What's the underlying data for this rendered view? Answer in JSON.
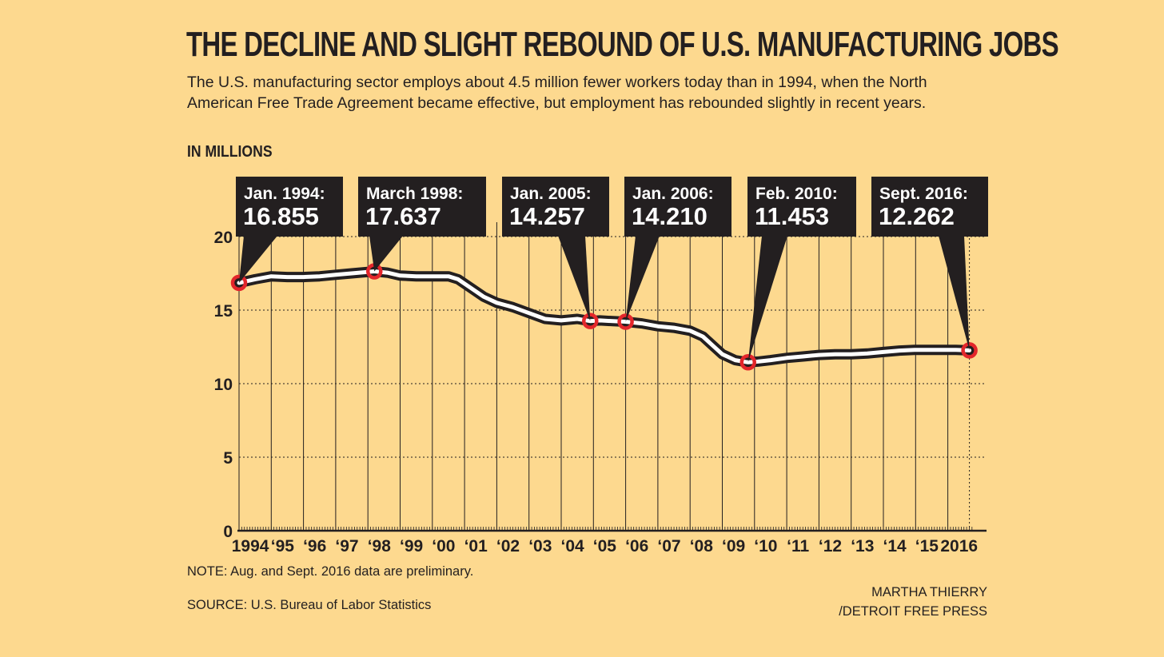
{
  "header": {
    "title": "THE DECLINE AND SLIGHT REBOUND OF U.S. MANUFACTURING JOBS",
    "subtitle": "The U.S. manufacturing sector employs about 4.5 million fewer workers today than in 1994, when the North American Free Trade Agreement became effective, but employment has rebounded slightly in recent years.",
    "units": "IN MILLIONS"
  },
  "footer": {
    "note": "NOTE: Aug. and Sept. 2016 data are preliminary.",
    "source": "SOURCE: U.S. Bureau of Labor Statistics",
    "credit_line1": "MARTHA THIERRY",
    "credit_line2": "/DETROIT FREE PRESS"
  },
  "colors": {
    "background": "#fdd98f",
    "line": "#231f20",
    "marker": "#e3262b",
    "callout": "#231f20",
    "callout_text": "#ffffff"
  },
  "chart_data": {
    "type": "line",
    "ylim": [
      0,
      20
    ],
    "yticks": [
      0,
      5,
      10,
      15,
      20
    ],
    "xlim": [
      1994.0,
      2016.75
    ],
    "xtick_labels": [
      {
        "year": 1994,
        "label": "1994"
      },
      {
        "year": 1995,
        "label": "‘95"
      },
      {
        "year": 1996,
        "label": "‘96"
      },
      {
        "year": 1997,
        "label": "‘97"
      },
      {
        "year": 1998,
        "label": "‘98"
      },
      {
        "year": 1999,
        "label": "‘99"
      },
      {
        "year": 2000,
        "label": "‘00"
      },
      {
        "year": 2001,
        "label": "‘01"
      },
      {
        "year": 2002,
        "label": "‘02"
      },
      {
        "year": 2003,
        "label": "‘03"
      },
      {
        "year": 2004,
        "label": "‘04"
      },
      {
        "year": 2005,
        "label": "‘05"
      },
      {
        "year": 2006,
        "label": "‘06"
      },
      {
        "year": 2007,
        "label": "‘07"
      },
      {
        "year": 2008,
        "label": "‘08"
      },
      {
        "year": 2009,
        "label": "‘09"
      },
      {
        "year": 2010,
        "label": "‘10"
      },
      {
        "year": 2011,
        "label": "‘11"
      },
      {
        "year": 2012,
        "label": "‘12"
      },
      {
        "year": 2013,
        "label": "‘13"
      },
      {
        "year": 2014,
        "label": "‘14"
      },
      {
        "year": 2015,
        "label": "‘15"
      },
      {
        "year": 2016,
        "label": "2016"
      }
    ],
    "series": [
      {
        "x": [
          1994.0,
          1994.5,
          1995.0,
          1995.5,
          1996.0,
          1996.5,
          1997.0,
          1997.5,
          1998.2,
          1998.6,
          1999.0,
          1999.5,
          2000.0,
          2000.5,
          2000.8,
          2001.2,
          2001.6,
          2002.0,
          2002.5,
          2003.0,
          2003.5,
          2004.0,
          2004.5,
          2004.9,
          2005.2,
          2005.6,
          2006.0,
          2006.5,
          2007.0,
          2007.5,
          2008.0,
          2008.4,
          2008.7,
          2009.0,
          2009.4,
          2009.8,
          2010.1,
          2010.5,
          2011.0,
          2011.5,
          2012.0,
          2012.5,
          2013.0,
          2013.5,
          2014.0,
          2014.5,
          2015.0,
          2015.5,
          2016.0,
          2016.25,
          2016.67
        ],
        "y": [
          16.855,
          17.1,
          17.3,
          17.25,
          17.25,
          17.3,
          17.4,
          17.5,
          17.637,
          17.55,
          17.35,
          17.3,
          17.3,
          17.3,
          17.1,
          16.5,
          15.9,
          15.5,
          15.2,
          14.8,
          14.4,
          14.3,
          14.4,
          14.257,
          14.3,
          14.25,
          14.21,
          14.1,
          13.9,
          13.8,
          13.6,
          13.2,
          12.6,
          12.0,
          11.6,
          11.453,
          11.5,
          11.6,
          11.75,
          11.85,
          11.95,
          12.0,
          12.0,
          12.05,
          12.15,
          12.25,
          12.3,
          12.3,
          12.3,
          12.3,
          12.262
        ]
      }
    ],
    "highlights": [
      {
        "date_label": "Jan. 1994:",
        "value_label": "16.855",
        "x": 1994.0,
        "y": 16.855
      },
      {
        "date_label": "March 1998:",
        "value_label": "17.637",
        "x": 1998.2,
        "y": 17.637
      },
      {
        "date_label": "Jan. 2005:",
        "value_label": "14.257",
        "x": 2004.9,
        "y": 14.257
      },
      {
        "date_label": "Jan. 2006:",
        "value_label": "14.210",
        "x": 2006.0,
        "y": 14.21
      },
      {
        "date_label": "Feb. 2010:",
        "value_label": "11.453",
        "x": 2009.8,
        "y": 11.453
      },
      {
        "date_label": "Sept. 2016:",
        "value_label": "12.262",
        "x": 2016.67,
        "y": 12.262
      }
    ]
  }
}
